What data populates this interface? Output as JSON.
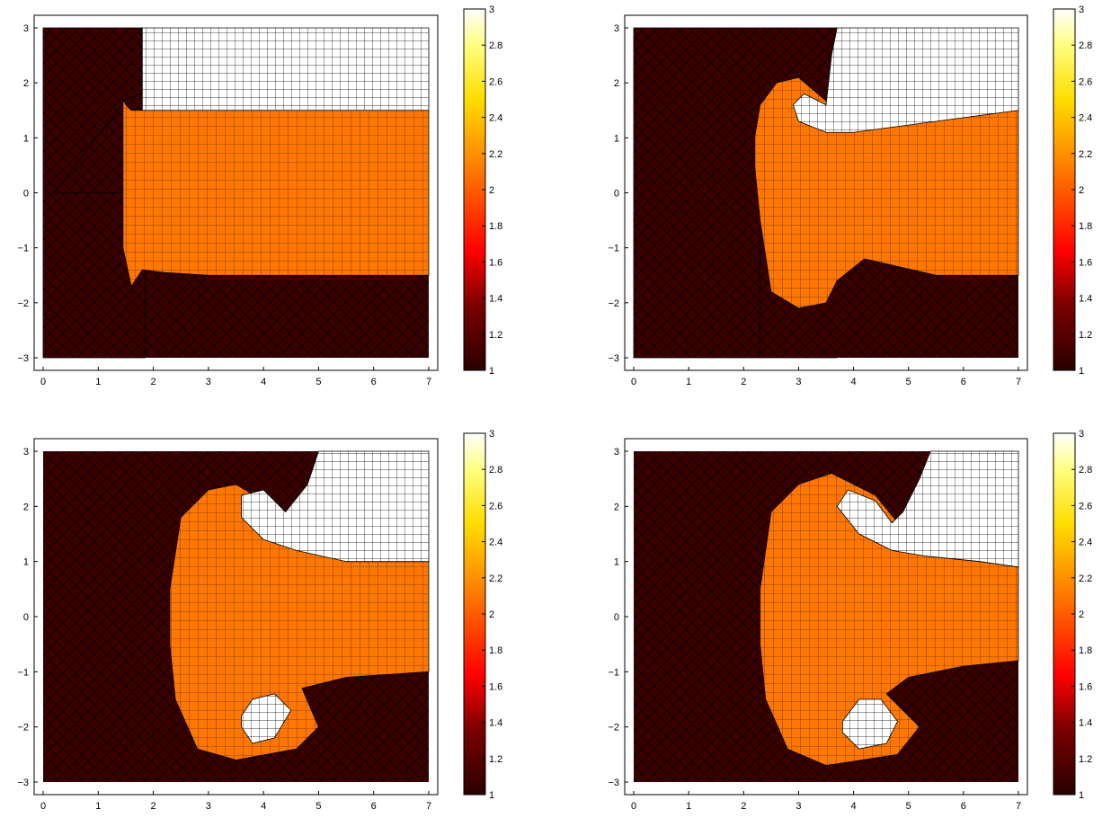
{
  "chart_data": [
    {
      "type": "heatmap",
      "panel": 1,
      "xlim": [
        0,
        7
      ],
      "ylim": [
        -3,
        3
      ],
      "x_ticks": [
        0,
        1,
        2,
        3,
        4,
        5,
        6,
        7
      ],
      "y_ticks": [
        -3,
        -2,
        -1,
        0,
        1,
        2,
        3
      ],
      "colorbar": {
        "ticks": [
          1,
          1.2,
          1.4,
          1.6,
          1.8,
          2,
          2.2,
          2.4,
          2.6,
          2.8,
          3
        ],
        "range": [
          1,
          3
        ],
        "colormap": "hot"
      },
      "regions": [
        {
          "value": 1,
          "x": [
            0,
            0,
            1.5,
            1.5,
            1.8,
            1.8,
            1.5,
            0.2,
            0.2,
            0.3,
            1.5,
            1.6,
            1.8,
            1.85,
            1.85,
            1.3,
            1.3,
            0
          ],
          "y": [
            -3,
            3,
            3,
            3,
            3,
            1.8,
            1.7,
            0,
            0,
            0,
            0,
            0,
            0,
            -0.2,
            -3,
            -3,
            -3,
            -3
          ]
        },
        {
          "value": 2,
          "x": [
            1.45,
            1.5,
            1.6,
            7,
            7,
            3,
            2.2,
            1.8,
            1.6,
            1.45
          ],
          "y": [
            1.7,
            1.6,
            1.5,
            1.5,
            -1.5,
            -1.5,
            -1.45,
            -1.4,
            -1.7,
            -1.0
          ]
        },
        {
          "value": 3,
          "x": [
            1.8,
            1.8,
            7,
            7,
            2.0,
            1.8
          ],
          "y": [
            3,
            1.5,
            1.5,
            3,
            3,
            3
          ]
        }
      ]
    },
    {
      "type": "heatmap",
      "panel": 2,
      "xlim": [
        0,
        7
      ],
      "ylim": [
        -3,
        3
      ],
      "x_ticks": [
        0,
        1,
        2,
        3,
        4,
        5,
        6,
        7
      ],
      "y_ticks": [
        -3,
        -2,
        -1,
        0,
        1,
        2,
        3
      ],
      "colorbar": {
        "ticks": [
          1,
          1.2,
          1.4,
          1.6,
          1.8,
          2,
          2.2,
          2.4,
          2.6,
          2.8,
          3
        ],
        "range": [
          1,
          3
        ],
        "colormap": "hot"
      },
      "regions": [
        {
          "value": 1,
          "x": [
            0,
            0,
            3.7,
            3.7,
            3.5,
            2.4,
            2.35,
            2.3,
            2.3,
            3.7,
            3.7,
            0
          ],
          "y": [
            -3,
            3,
            3,
            1.5,
            0.0,
            0.0,
            -0.3,
            -1.0,
            -3,
            -3,
            -3,
            -3
          ]
        },
        {
          "value": 2,
          "x": [
            2.2,
            2.3,
            2.6,
            3.0,
            3.7,
            7,
            7,
            5.5,
            4.2,
            3.7,
            3.5,
            3.0,
            2.5,
            2.3,
            2.2
          ],
          "y": [
            1.0,
            1.6,
            2.0,
            2.1,
            1.5,
            1.5,
            -1.5,
            -1.5,
            -1.2,
            -1.6,
            -2.0,
            -2.1,
            -1.8,
            -0.5,
            0.5
          ]
        },
        {
          "value": 3,
          "x": [
            3.7,
            7,
            7,
            4.0,
            3.5,
            3.0,
            2.9,
            3.1,
            3.5,
            3.6,
            3.7
          ],
          "y": [
            3,
            3,
            1.5,
            1.1,
            1.1,
            1.3,
            1.6,
            1.8,
            1.6,
            2.5,
            3
          ]
        }
      ]
    },
    {
      "type": "heatmap",
      "panel": 3,
      "xlim": [
        0,
        7
      ],
      "ylim": [
        -3,
        3
      ],
      "x_ticks": [
        0,
        1,
        2,
        3,
        4,
        5,
        6,
        7
      ],
      "y_ticks": [
        -3,
        -2,
        -1,
        0,
        1,
        2,
        3
      ],
      "colorbar": {
        "ticks": [
          1,
          1.2,
          1.4,
          1.6,
          1.8,
          2,
          2.2,
          2.4,
          2.6,
          2.8,
          3
        ],
        "range": [
          1,
          3
        ],
        "colormap": "hot"
      },
      "regions": [
        {
          "value": 2,
          "x": [
            2.3,
            2.5,
            3.0,
            3.5,
            4.5,
            5.5,
            7,
            7,
            5.5,
            4.7,
            5.0,
            4.6,
            3.5,
            2.8,
            2.4,
            2.3
          ],
          "y": [
            0.5,
            1.8,
            2.3,
            2.4,
            1.8,
            1.0,
            1.0,
            -1.0,
            -1.1,
            -1.3,
            -2.0,
            -2.4,
            -2.6,
            -2.4,
            -1.5,
            -0.5
          ]
        },
        {
          "value": 3,
          "x": [
            5.0,
            7,
            7,
            5.5,
            4.6,
            4.0,
            3.6,
            3.6,
            4.0,
            4.4,
            4.8,
            5.0
          ],
          "y": [
            3,
            3,
            1.0,
            1.0,
            1.2,
            1.4,
            1.8,
            2.2,
            2.3,
            1.9,
            2.4,
            3
          ]
        },
        {
          "value": 3,
          "x": [
            3.6,
            3.8,
            4.2,
            4.5,
            4.2,
            3.8,
            3.6
          ],
          "y": [
            -1.8,
            -1.5,
            -1.4,
            -1.7,
            -2.2,
            -2.3,
            -2.0
          ]
        }
      ]
    },
    {
      "type": "heatmap",
      "panel": 4,
      "xlim": [
        0,
        7
      ],
      "ylim": [
        -3,
        3
      ],
      "x_ticks": [
        0,
        1,
        2,
        3,
        4,
        5,
        6,
        7
      ],
      "y_ticks": [
        -3,
        -2,
        -1,
        0,
        1,
        2,
        3
      ],
      "colorbar": {
        "ticks": [
          1,
          1.2,
          1.4,
          1.6,
          1.8,
          2,
          2.2,
          2.4,
          2.6,
          2.8,
          3
        ],
        "range": [
          1,
          3
        ],
        "colormap": "hot"
      },
      "regions": [
        {
          "value": 2,
          "x": [
            2.3,
            2.5,
            3.0,
            3.6,
            4.4,
            5.3,
            6.3,
            7,
            7,
            6.0,
            5.0,
            4.6,
            5.2,
            4.8,
            3.5,
            2.8,
            2.4,
            2.3
          ],
          "y": [
            0.5,
            1.9,
            2.4,
            2.6,
            2.2,
            1.1,
            1.0,
            0.9,
            -0.8,
            -0.9,
            -1.1,
            -1.4,
            -2.0,
            -2.5,
            -2.7,
            -2.4,
            -1.5,
            -0.5
          ]
        },
        {
          "value": 3,
          "x": [
            5.4,
            7,
            7,
            6.3,
            5.3,
            4.7,
            4.1,
            3.7,
            3.9,
            4.4,
            4.7,
            4.9,
            5.2,
            5.4
          ],
          "y": [
            3,
            3,
            0.9,
            1.0,
            1.1,
            1.2,
            1.5,
            2.0,
            2.3,
            2.1,
            1.7,
            1.9,
            2.5,
            3
          ]
        },
        {
          "value": 3,
          "x": [
            3.8,
            4.1,
            4.5,
            4.8,
            4.6,
            4.1,
            3.8
          ],
          "y": [
            -1.9,
            -1.5,
            -1.5,
            -1.9,
            -2.3,
            -2.4,
            -2.1
          ]
        }
      ]
    }
  ]
}
